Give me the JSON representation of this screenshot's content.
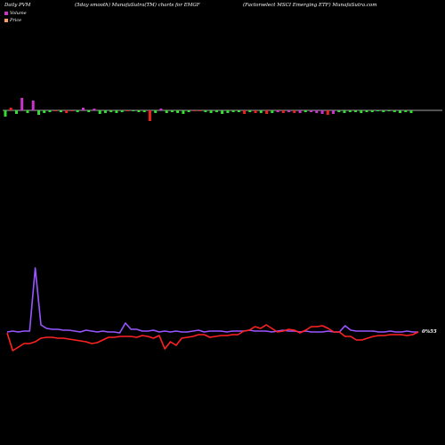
{
  "header": {
    "left": "Daily PVM",
    "center": "(5day smooth) MunafaSutra(TM) charts for EMGF",
    "right": "(Factorselect MSCI Emerging ETF) MunafaSutra.com"
  },
  "legend": {
    "volume_label": "Volume",
    "price_label": "Price",
    "volume_color": "#cc33cc",
    "price_color": "#ff9966"
  },
  "colors": {
    "up": "#33dd33",
    "down": "#ee2222",
    "spike": "#cc33cc",
    "volume_line": "#9955ff",
    "price_line": "#ff2222",
    "axis": "#dddddd"
  },
  "price_tag": "0%55",
  "chart_data": [
    {
      "type": "bar",
      "name": "pvm",
      "values": [
        -7,
        3,
        -4,
        14,
        -3,
        11,
        -5,
        -3,
        -2,
        -1,
        -2,
        -3,
        -1,
        -2,
        3,
        -2,
        2,
        -4,
        -3,
        -2,
        -3,
        -2,
        -1,
        -1,
        -2,
        -2,
        -12,
        -3,
        2,
        -3,
        -2,
        -3,
        -4,
        -2,
        -1,
        -1,
        -2,
        -3,
        -2,
        -4,
        -3,
        -2,
        -2,
        -4,
        -2,
        -3,
        -3,
        -4,
        -3,
        -2,
        -3,
        -2,
        -3,
        -3,
        -2,
        -2,
        -3,
        -4,
        -5,
        -4,
        -2,
        -3,
        -2,
        -2,
        -3,
        -2,
        -2,
        -1,
        -2,
        -1,
        -2,
        -3,
        -2,
        -3
      ],
      "colors": [
        "up",
        "down",
        "up",
        "spike",
        "up",
        "spike",
        "up",
        "up",
        "up",
        "down",
        "up",
        "down",
        "down",
        "up",
        "spike",
        "up",
        "spike",
        "up",
        "up",
        "up",
        "up",
        "up",
        "down",
        "up",
        "up",
        "up",
        "down",
        "up",
        "spike",
        "up",
        "up",
        "up",
        "up",
        "up",
        "down",
        "down",
        "up",
        "up",
        "up",
        "up",
        "up",
        "up",
        "up",
        "down",
        "up",
        "down",
        "up",
        "down",
        "up",
        "spike",
        "down",
        "spike",
        "down",
        "spike",
        "up",
        "spike",
        "spike",
        "spike",
        "down",
        "spike",
        "up",
        "up",
        "up",
        "up",
        "up",
        "up",
        "up",
        "up",
        "up",
        "up",
        "up",
        "up",
        "up",
        "up"
      ]
    },
    {
      "type": "line",
      "name": "volume",
      "values": [
        4,
        5,
        4,
        5,
        5,
        76,
        12,
        8,
        7,
        7,
        6,
        6,
        5,
        4,
        6,
        5,
        4,
        5,
        4,
        4,
        3,
        14,
        7,
        7,
        5,
        5,
        6,
        4,
        5,
        4,
        5,
        4,
        4,
        5,
        6,
        4,
        5,
        5,
        5,
        4,
        5,
        5,
        5,
        6,
        5,
        5,
        5,
        4,
        5,
        6,
        5,
        5,
        4,
        5,
        4,
        4,
        4,
        5,
        4,
        4,
        11,
        6,
        5,
        5,
        5,
        5,
        4,
        4,
        5,
        4,
        4,
        5,
        4,
        4
      ]
    },
    {
      "type": "line",
      "name": "price",
      "values": [
        0,
        -20,
        -16,
        -12,
        -12,
        -10,
        -6,
        -5,
        -5,
        -6,
        -6,
        -7,
        -8,
        -9,
        -10,
        -12,
        -11,
        -8,
        -5,
        -5,
        -4,
        -4,
        -4,
        -5,
        -3,
        -4,
        -6,
        -3,
        -18,
        -10,
        -14,
        -6,
        -5,
        -4,
        -2,
        -2,
        -5,
        -4,
        -3,
        -3,
        -2,
        -2,
        2,
        3,
        7,
        5,
        9,
        5,
        1,
        2,
        4,
        3,
        0,
        3,
        7,
        7,
        8,
        5,
        1,
        1,
        -4,
        -4,
        -8,
        -8,
        -6,
        -4,
        -3,
        -3,
        -2,
        -2,
        -2,
        -3,
        -2,
        1
      ]
    }
  ]
}
